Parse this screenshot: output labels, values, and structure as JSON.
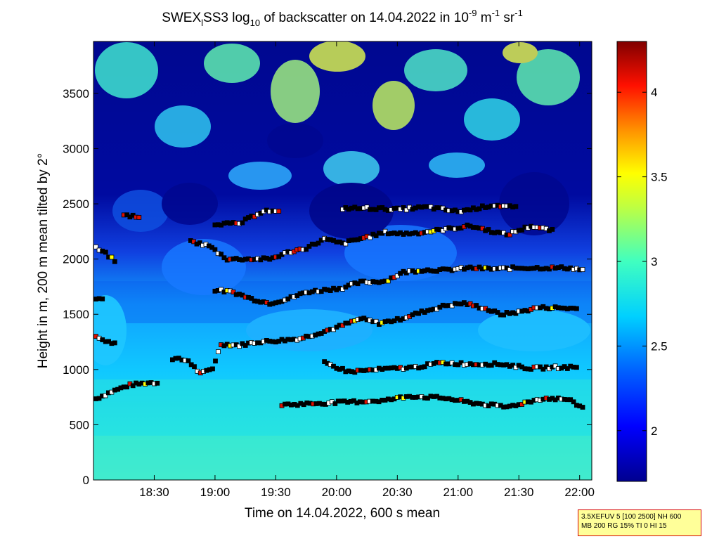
{
  "chart_data": {
    "type": "heatmap",
    "title": {
      "prefix": "SWEX",
      "sub1": "l",
      "mid1": "SS3 log",
      "sub2": "10",
      "mid2": " of backscatter on 14.04.2022 in 10",
      "sup1": "-9",
      "mid3": " m",
      "sup2": "-1",
      "mid4": " sr",
      "sup3": "-1"
    },
    "xlabel": "Time on 14.04.2022, 600 s mean",
    "ylabel": "Height in m, 200 m mean tilted by 2°",
    "xlim": [
      "18:00",
      "22:06"
    ],
    "ylim": [
      0,
      3970
    ],
    "x_ticks": [
      "18:30",
      "19:00",
      "19:30",
      "20:00",
      "20:30",
      "21:00",
      "21:30",
      "22:00"
    ],
    "y_ticks": [
      "0",
      "500",
      "1000",
      "1500",
      "2000",
      "2500",
      "3000",
      "3500"
    ],
    "colorbar": {
      "range": [
        1.7,
        4.3
      ],
      "ticks": [
        "2",
        "2.5",
        "3",
        "3.5",
        "4"
      ],
      "colormap": [
        "#00008f",
        "#0000ff",
        "#0080ff",
        "#00ffff",
        "#80ff80",
        "#ffff00",
        "#ff8000",
        "#ff0000",
        "#800000"
      ]
    },
    "marker_colors": {
      "low": "#ffffff",
      "mid": "#ffff00",
      "high": "#e01000"
    },
    "detected_layers": [
      {
        "name": "l1",
        "points": [
          [
            18.02,
            735
          ],
          [
            18.15,
            800
          ],
          [
            18.3,
            860
          ],
          [
            18.45,
            880
          ],
          [
            18.55,
            880
          ]
        ]
      },
      {
        "name": "l2",
        "points": [
          [
            18.02,
            1310
          ],
          [
            18.1,
            1250
          ],
          [
            18.2,
            1240
          ]
        ]
      },
      {
        "name": "l3",
        "points": [
          [
            18.65,
            1100
          ],
          [
            18.78,
            1080
          ],
          [
            18.88,
            960
          ],
          [
            18.98,
            1010
          ],
          [
            19.05,
            1230
          ],
          [
            19.2,
            1220
          ],
          [
            19.35,
            1250
          ],
          [
            19.5,
            1260
          ],
          [
            19.7,
            1280
          ],
          [
            19.85,
            1330
          ],
          [
            20.0,
            1380
          ],
          [
            20.1,
            1420
          ],
          [
            20.2,
            1460
          ],
          [
            20.35,
            1420
          ],
          [
            20.5,
            1450
          ],
          [
            20.7,
            1520
          ],
          [
            20.9,
            1580
          ],
          [
            21.05,
            1600
          ],
          [
            21.2,
            1560
          ],
          [
            21.35,
            1500
          ],
          [
            21.5,
            1520
          ],
          [
            21.65,
            1560
          ],
          [
            21.8,
            1560
          ],
          [
            22.0,
            1550
          ]
        ]
      },
      {
        "name": "l4",
        "points": [
          [
            18.02,
            1650
          ],
          [
            18.1,
            1630
          ]
        ]
      },
      {
        "name": "l5",
        "points": [
          [
            19.0,
            1720
          ],
          [
            19.15,
            1700
          ],
          [
            19.3,
            1640
          ],
          [
            19.45,
            1600
          ],
          [
            19.6,
            1640
          ],
          [
            19.75,
            1700
          ],
          [
            19.9,
            1720
          ],
          [
            20.05,
            1740
          ],
          [
            20.2,
            1790
          ],
          [
            20.4,
            1800
          ],
          [
            20.55,
            1880
          ],
          [
            20.7,
            1900
          ],
          [
            20.9,
            1900
          ],
          [
            21.1,
            1920
          ],
          [
            21.3,
            1910
          ],
          [
            21.5,
            1920
          ],
          [
            21.7,
            1920
          ],
          [
            21.9,
            1920
          ],
          [
            22.05,
            1900
          ]
        ]
      },
      {
        "name": "l6",
        "points": [
          [
            18.02,
            2100
          ],
          [
            18.1,
            2050
          ],
          [
            18.2,
            1960
          ]
        ]
      },
      {
        "name": "l7",
        "points": [
          [
            18.8,
            2160
          ],
          [
            18.95,
            2120
          ],
          [
            19.1,
            2000
          ],
          [
            19.25,
            2000
          ],
          [
            19.45,
            2000
          ],
          [
            19.6,
            2060
          ],
          [
            19.75,
            2100
          ],
          [
            19.9,
            2180
          ],
          [
            20.05,
            2140
          ],
          [
            20.25,
            2200
          ],
          [
            20.4,
            2240
          ],
          [
            20.55,
            2230
          ],
          [
            20.7,
            2240
          ],
          [
            20.9,
            2270
          ],
          [
            21.1,
            2300
          ],
          [
            21.25,
            2260
          ],
          [
            21.4,
            2220
          ],
          [
            21.6,
            2300
          ],
          [
            21.8,
            2250
          ]
        ]
      },
      {
        "name": "l8",
        "points": [
          [
            18.25,
            2400
          ],
          [
            18.4,
            2380
          ]
        ]
      },
      {
        "name": "l9",
        "points": [
          [
            19.0,
            2320
          ],
          [
            19.2,
            2320
          ],
          [
            19.4,
            2440
          ],
          [
            19.55,
            2420
          ]
        ]
      },
      {
        "name": "l10",
        "points": [
          [
            20.05,
            2460
          ],
          [
            20.25,
            2460
          ],
          [
            20.5,
            2450
          ],
          [
            20.75,
            2470
          ],
          [
            21.0,
            2430
          ],
          [
            21.3,
            2490
          ],
          [
            21.5,
            2460
          ]
        ]
      },
      {
        "name": "l11",
        "points": [
          [
            19.9,
            1060
          ],
          [
            20.1,
            980
          ],
          [
            20.35,
            1000
          ],
          [
            20.65,
            1020
          ],
          [
            20.85,
            1060
          ],
          [
            21.1,
            1050
          ],
          [
            21.35,
            1050
          ],
          [
            21.6,
            1010
          ],
          [
            21.8,
            1020
          ],
          [
            22.0,
            1020
          ]
        ]
      },
      {
        "name": "l12",
        "points": [
          [
            19.55,
            680
          ],
          [
            20.4,
            720
          ],
          [
            20.6,
            760
          ],
          [
            20.9,
            740
          ],
          [
            21.1,
            700
          ],
          [
            21.4,
            660
          ],
          [
            21.7,
            740
          ],
          [
            21.9,
            730
          ],
          [
            22.05,
            640
          ]
        ]
      }
    ]
  },
  "info_box": {
    "line1": "3.5XEFUV 5 [100 2500] NH 600",
    "line2": "MB 200 RG 15% TI 0 HI 15"
  }
}
